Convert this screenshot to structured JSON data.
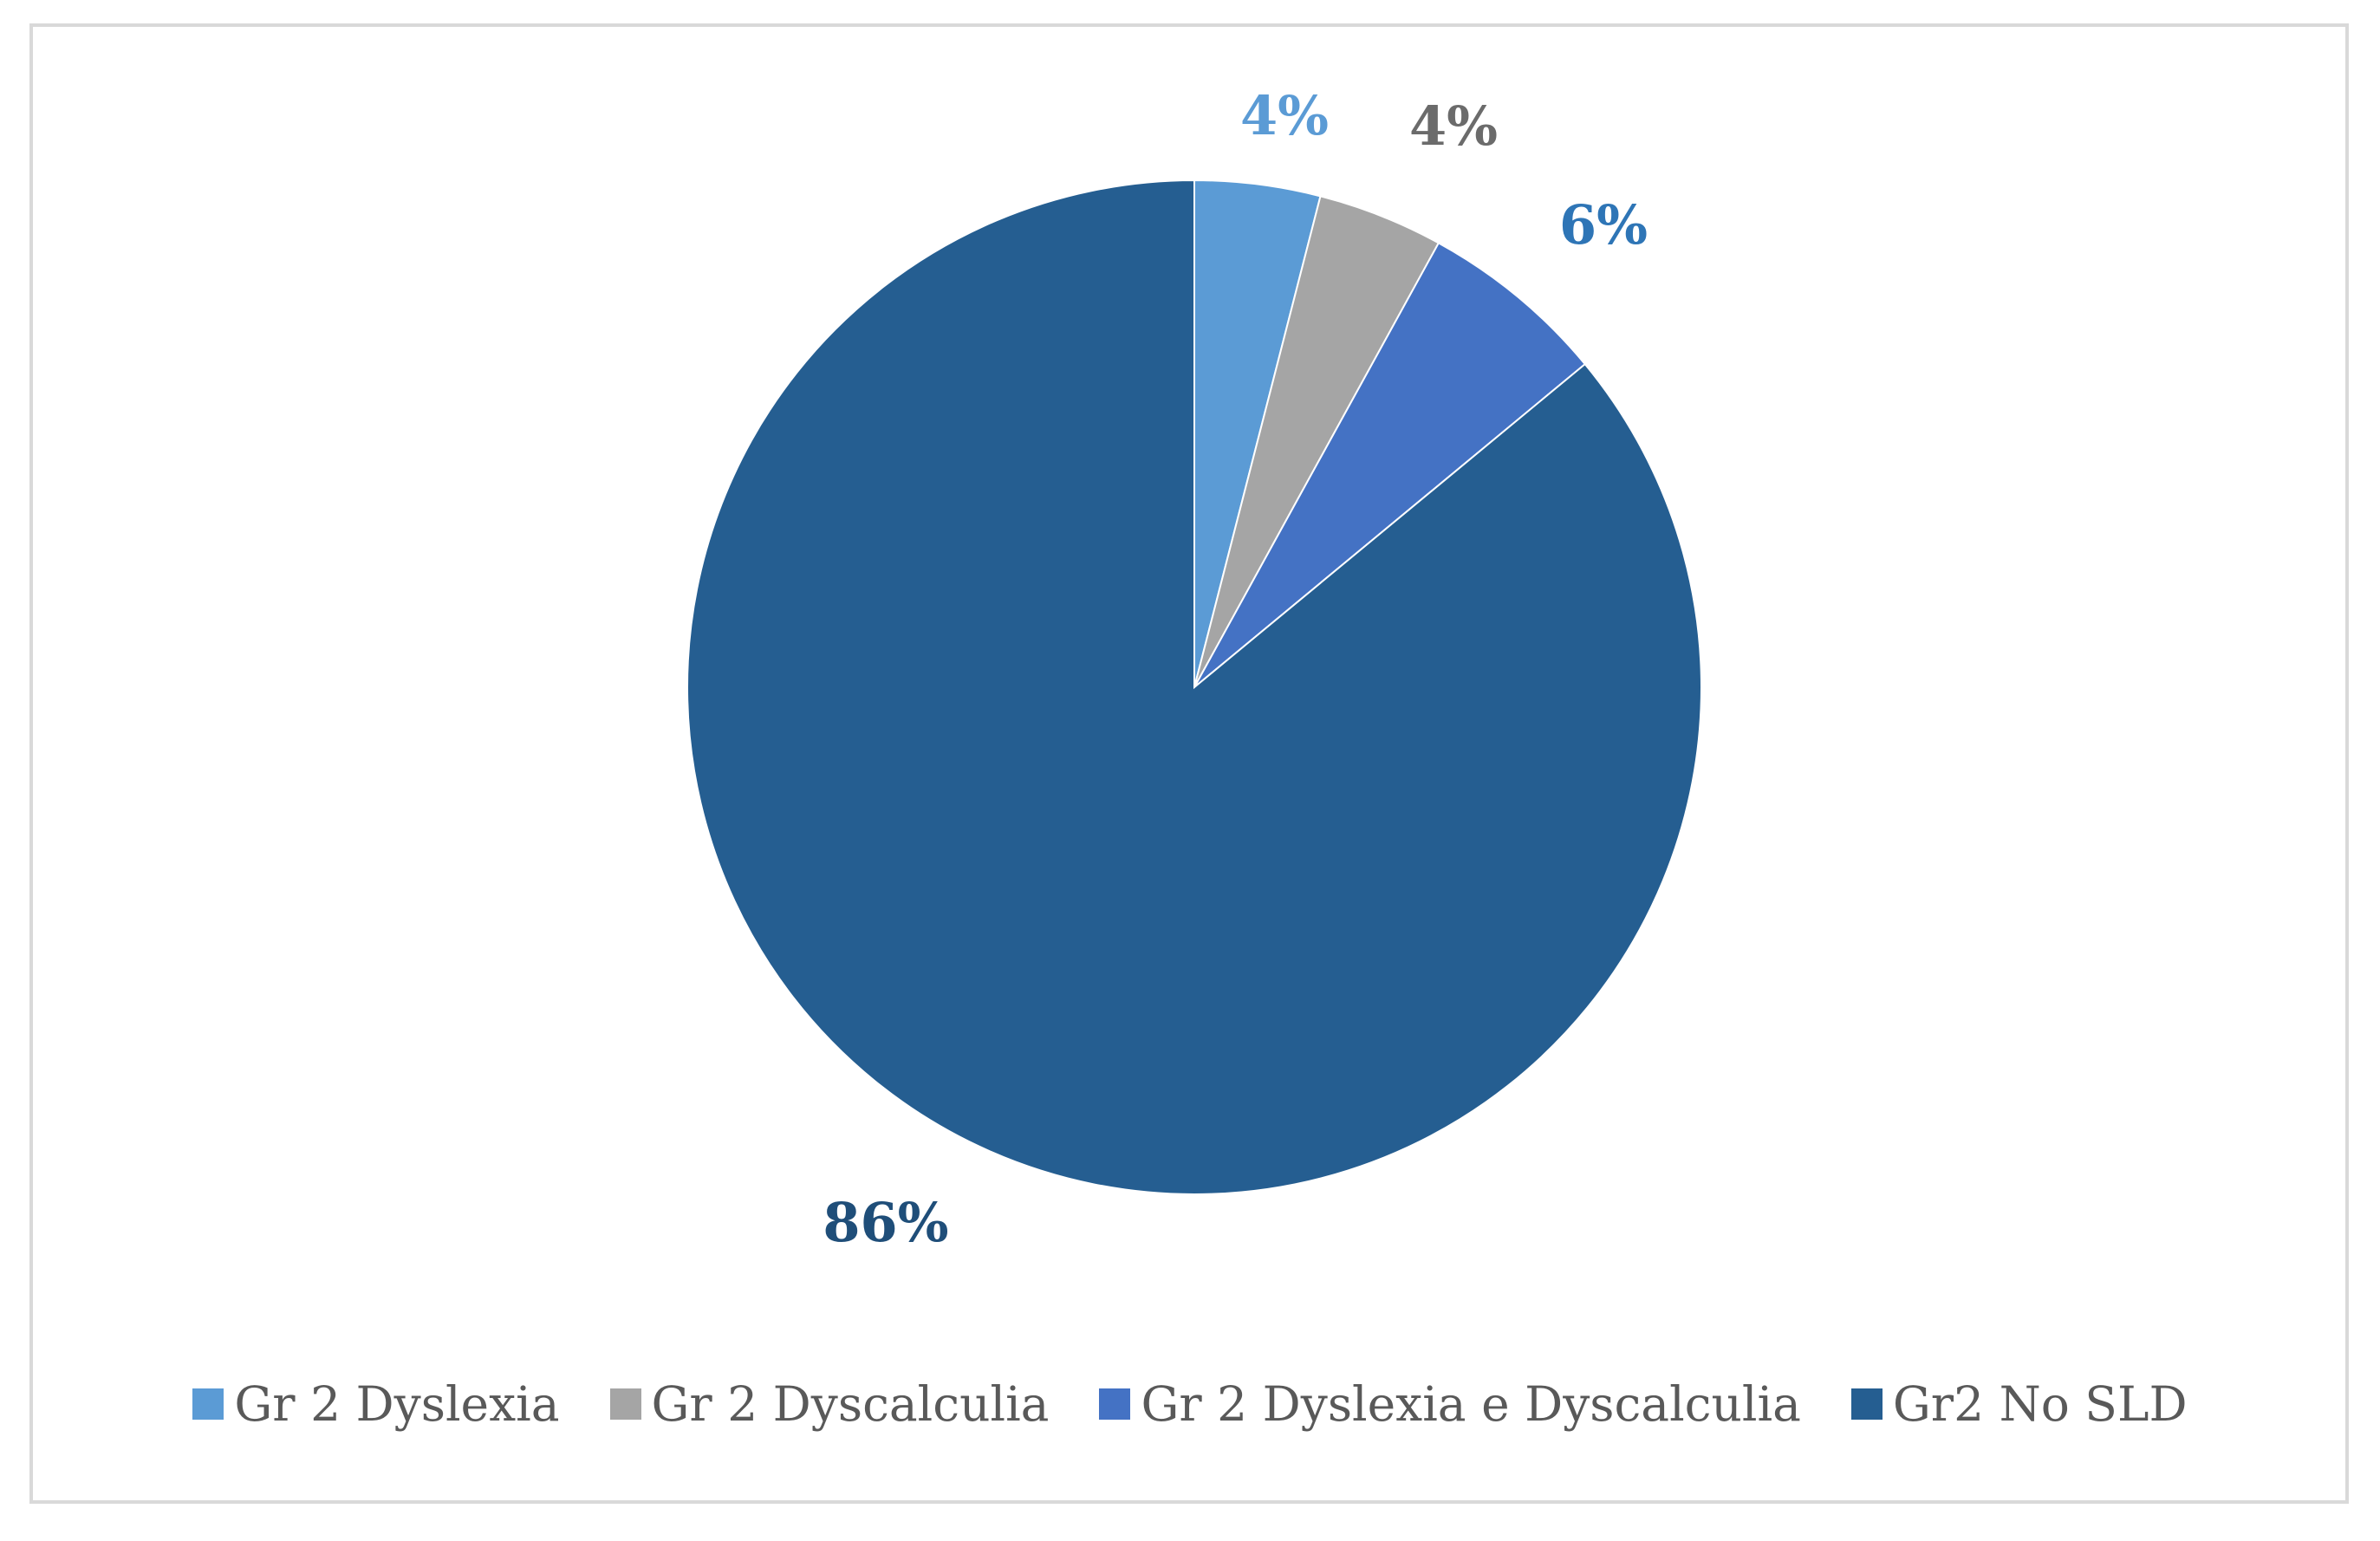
{
  "chart_data": {
    "type": "pie",
    "title": "",
    "start_angle_deg": 0,
    "direction": "clockwise",
    "legend_position": "bottom",
    "slices": [
      {
        "name": "Gr 2 Dyslexia",
        "value": 4,
        "label": "4%",
        "color": "#5B9BD5",
        "label_color": "#5B9BD5"
      },
      {
        "name": "Gr 2 Dyscalculia",
        "value": 4,
        "label": "4%",
        "color": "#A5A5A5",
        "label_color": "#6B6B6B"
      },
      {
        "name": "Gr 2 Dyslexia e Dyscalculia",
        "value": 6,
        "label": "6%",
        "color": "#4472C4",
        "label_color": "#2E75B6"
      },
      {
        "name": "Gr2 No SLD",
        "value": 86,
        "label": "86%",
        "color": "#255E91",
        "label_color": "#1F4E79"
      }
    ]
  }
}
